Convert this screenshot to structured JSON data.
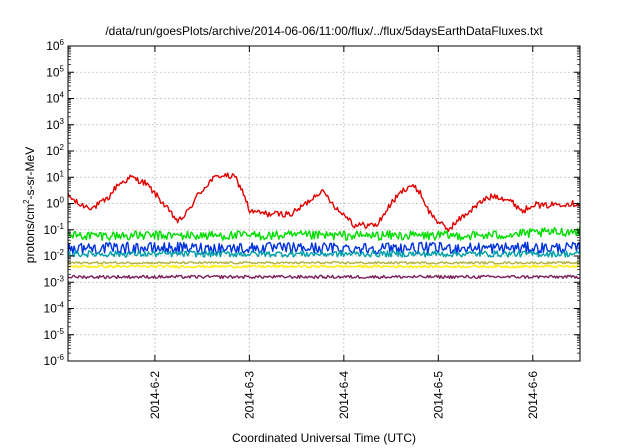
{
  "chart_data": {
    "type": "line",
    "title": "/data/run/goesPlots/archive/2014-06-06/11:00/flux/../flux/5daysEarthDataFluxes.txt",
    "xlabel": "Coordinated Universal Time (UTC)",
    "ylabel": {
      "base": "protons/cm",
      "exp": "2",
      "rest": "-s-sr-MeV"
    },
    "yscale": "log",
    "ylim_exp": [
      -6,
      6
    ],
    "xlim_days": [
      1.08,
      6.5
    ],
    "y_ticks": [
      {
        "base": "10",
        "exp": "-6",
        "e": -6
      },
      {
        "base": "10",
        "exp": "-5",
        "e": -5
      },
      {
        "base": "10",
        "exp": "-4",
        "e": -4
      },
      {
        "base": "10",
        "exp": "-3",
        "e": -3
      },
      {
        "base": "10",
        "exp": "-2",
        "e": -2
      },
      {
        "base": "10",
        "exp": "-1",
        "e": -1
      },
      {
        "base": "10",
        "exp": "0",
        "e": 0
      },
      {
        "base": "10",
        "exp": "1",
        "e": 1
      },
      {
        "base": "10",
        "exp": "2",
        "e": 2
      },
      {
        "base": "10",
        "exp": "3",
        "e": 3
      },
      {
        "base": "10",
        "exp": "4",
        "e": 4
      },
      {
        "base": "10",
        "exp": "5",
        "e": 5
      },
      {
        "base": "10",
        "exp": "6",
        "e": 6
      }
    ],
    "x_ticks": [
      {
        "label": "2014-6-2",
        "day": 2
      },
      {
        "label": "2014-6-3",
        "day": 3
      },
      {
        "label": "2014-6-4",
        "day": 4
      },
      {
        "label": "2014-6-5",
        "day": 5
      },
      {
        "label": "2014-6-6",
        "day": 6
      }
    ],
    "grid": true,
    "series": [
      {
        "color": "#e00000",
        "noise": 0.12,
        "points": [
          [
            1.08,
            2.0
          ],
          [
            1.2,
            0.9
          ],
          [
            1.35,
            0.7
          ],
          [
            1.5,
            1.5
          ],
          [
            1.6,
            5
          ],
          [
            1.75,
            10
          ],
          [
            1.9,
            6
          ],
          [
            2.05,
            1.5
          ],
          [
            2.15,
            0.5
          ],
          [
            2.25,
            0.2
          ],
          [
            2.35,
            0.5
          ],
          [
            2.45,
            2
          ],
          [
            2.6,
            8
          ],
          [
            2.7,
            12
          ],
          [
            2.85,
            10
          ],
          [
            2.95,
            2
          ],
          [
            3.0,
            0.5
          ],
          [
            3.2,
            0.4
          ],
          [
            3.45,
            0.4
          ],
          [
            3.6,
            1
          ],
          [
            3.75,
            3
          ],
          [
            3.82,
            2
          ],
          [
            3.95,
            0.5
          ],
          [
            4.05,
            0.3
          ],
          [
            4.1,
            0.15
          ],
          [
            4.25,
            0.15
          ],
          [
            4.35,
            0.15
          ],
          [
            4.5,
            1
          ],
          [
            4.62,
            3
          ],
          [
            4.7,
            5
          ],
          [
            4.8,
            3
          ],
          [
            4.9,
            0.5
          ],
          [
            5.0,
            0.2
          ],
          [
            5.1,
            0.1
          ],
          [
            5.25,
            0.3
          ],
          [
            5.4,
            0.8
          ],
          [
            5.5,
            1.5
          ],
          [
            5.6,
            2
          ],
          [
            5.72,
            1.5
          ],
          [
            5.8,
            1
          ],
          [
            5.9,
            0.5
          ],
          [
            6.0,
            1
          ],
          [
            6.1,
            0.8
          ],
          [
            6.3,
            1
          ],
          [
            6.5,
            1
          ]
        ]
      },
      {
        "color": "#00dd00",
        "noise": 0.18,
        "points": [
          [
            1.08,
            0.06
          ],
          [
            3.0,
            0.06
          ],
          [
            4.5,
            0.06
          ],
          [
            5.5,
            0.06
          ],
          [
            6.5,
            0.09
          ]
        ]
      },
      {
        "color": "#0033dd",
        "noise": 0.22,
        "points": [
          [
            1.08,
            0.02
          ],
          [
            3.0,
            0.02
          ],
          [
            4.5,
            0.02
          ],
          [
            6.5,
            0.02
          ]
        ]
      },
      {
        "color": "#00a0a8",
        "noise": 0.12,
        "points": [
          [
            1.08,
            0.012
          ],
          [
            3.0,
            0.012
          ],
          [
            6.5,
            0.012
          ]
        ]
      },
      {
        "color": "#ffee00",
        "noise": 0.05,
        "points": [
          [
            1.08,
            0.004
          ],
          [
            6.5,
            0.004
          ]
        ]
      },
      {
        "color": "#b0b040",
        "noise": 0.04,
        "points": [
          [
            1.08,
            0.0055
          ],
          [
            6.5,
            0.0055
          ]
        ]
      },
      {
        "color": "#7a1f5a",
        "noise": 0.06,
        "points": [
          [
            1.08,
            0.0016
          ],
          [
            6.5,
            0.0016
          ]
        ]
      }
    ]
  }
}
